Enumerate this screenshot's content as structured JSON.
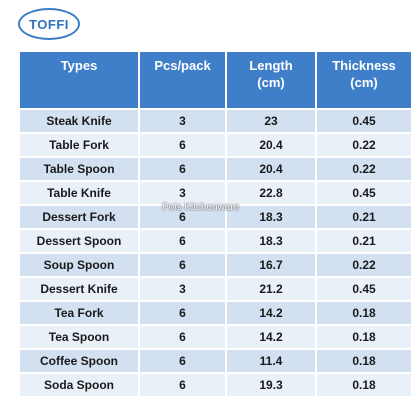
{
  "brand": {
    "logo_text": "TOFFI"
  },
  "watermark": "Pois Kitchenware",
  "table": {
    "headers": [
      "Types",
      "Pcs/pack",
      "Length\n(cm)",
      "Thickness\n(cm)"
    ],
    "rows": [
      [
        "Steak Knife",
        "3",
        "23",
        "0.45"
      ],
      [
        "Table Fork",
        "6",
        "20.4",
        "0.22"
      ],
      [
        "Table Spoon",
        "6",
        "20.4",
        "0.22"
      ],
      [
        "Table Knife",
        "3",
        "22.8",
        "0.45"
      ],
      [
        "Dessert Fork",
        "6",
        "18.3",
        "0.21"
      ],
      [
        "Dessert Spoon",
        "6",
        "18.3",
        "0.21"
      ],
      [
        "Soup Spoon",
        "6",
        "16.7",
        "0.22"
      ],
      [
        "Dessert Knife",
        "3",
        "21.2",
        "0.45"
      ],
      [
        "Tea Fork",
        "6",
        "14.2",
        "0.18"
      ],
      [
        "Tea Spoon",
        "6",
        "14.2",
        "0.18"
      ],
      [
        "Coffee Spoon",
        "6",
        "11.4",
        "0.18"
      ],
      [
        "Soda Spoon",
        "6",
        "19.3",
        "0.18"
      ]
    ]
  },
  "colors": {
    "header_bg": "#3f7fc9",
    "row_odd": "#d3e0f1",
    "row_even": "#eaf0f8",
    "logo": "#2f72bd"
  }
}
